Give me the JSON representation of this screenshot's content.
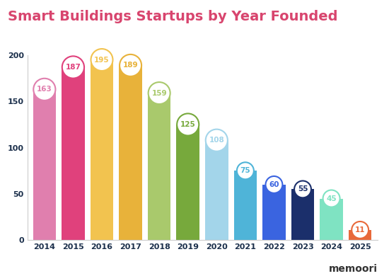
{
  "chart_data": {
    "type": "bar",
    "title": "Smart Buildings Startups by Year Founded",
    "categories": [
      "2014",
      "2015",
      "2016",
      "2017",
      "2018",
      "2019",
      "2020",
      "2021",
      "2022",
      "2023",
      "2024",
      "2025"
    ],
    "values": [
      163,
      187,
      195,
      189,
      159,
      125,
      108,
      75,
      60,
      55,
      45,
      11
    ],
    "colors": [
      "#e07fae",
      "#e0417c",
      "#f2c34f",
      "#e8b23a",
      "#a9c96c",
      "#77a93c",
      "#a3d5ea",
      "#4fb4d8",
      "#3a64e0",
      "#1b2f6b",
      "#7fe3c2",
      "#e8693a"
    ],
    "ylim": [
      0,
      200
    ],
    "yticks": [
      0,
      50,
      100,
      150,
      200
    ],
    "grid": false,
    "data_labels": true,
    "annotations": [
      "memoori"
    ]
  }
}
